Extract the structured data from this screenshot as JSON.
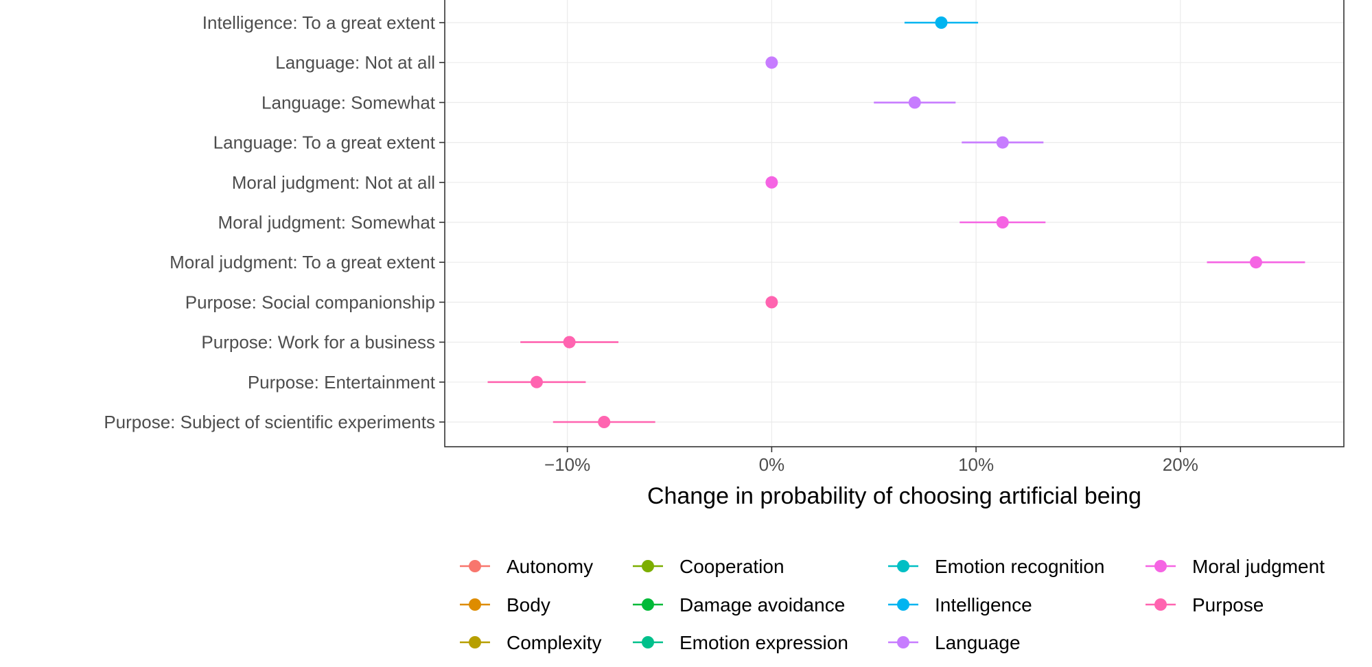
{
  "chart_data": {
    "type": "scatter",
    "subtype": "coefficient-plot-with-error-bars",
    "title": "",
    "xlabel": "Change in probability of choosing artificial being",
    "ylabel": "",
    "xlim": [
      -0.16,
      0.28
    ],
    "x_ticks": [
      {
        "value": -0.1,
        "label": "−10%"
      },
      {
        "value": 0.0,
        "label": "0%"
      },
      {
        "value": 0.1,
        "label": "10%"
      },
      {
        "value": 0.2,
        "label": "20%"
      }
    ],
    "grid": true,
    "legend_position": "bottom",
    "rows": [
      {
        "label": "Intelligence: To a great extent",
        "category": "Intelligence",
        "estimate": 0.083,
        "lower": 0.065,
        "upper": 0.101
      },
      {
        "label": "Language: Not at all",
        "category": "Language",
        "estimate": 0.0,
        "lower": 0.0,
        "upper": 0.0
      },
      {
        "label": "Language: Somewhat",
        "category": "Language",
        "estimate": 0.07,
        "lower": 0.05,
        "upper": 0.09
      },
      {
        "label": "Language: To a great extent",
        "category": "Language",
        "estimate": 0.113,
        "lower": 0.093,
        "upper": 0.133
      },
      {
        "label": "Moral judgment: Not at all",
        "category": "Moral judgment",
        "estimate": 0.0,
        "lower": 0.0,
        "upper": 0.0
      },
      {
        "label": "Moral judgment: Somewhat",
        "category": "Moral judgment",
        "estimate": 0.113,
        "lower": 0.092,
        "upper": 0.134
      },
      {
        "label": "Moral judgment: To a great extent",
        "category": "Moral judgment",
        "estimate": 0.237,
        "lower": 0.213,
        "upper": 0.261
      },
      {
        "label": "Purpose: Social companionship",
        "category": "Purpose",
        "estimate": 0.0,
        "lower": 0.0,
        "upper": 0.0
      },
      {
        "label": "Purpose: Work for a business",
        "category": "Purpose",
        "estimate": -0.099,
        "lower": -0.123,
        "upper": -0.075
      },
      {
        "label": "Purpose: Entertainment",
        "category": "Purpose",
        "estimate": -0.115,
        "lower": -0.139,
        "upper": -0.091
      },
      {
        "label": "Purpose: Subject of scientific experiments",
        "category": "Purpose",
        "estimate": -0.082,
        "lower": -0.107,
        "upper": -0.057
      }
    ],
    "legend": [
      {
        "name": "Autonomy",
        "color": "#F8766D"
      },
      {
        "name": "Body",
        "color": "#DE8C00"
      },
      {
        "name": "Complexity",
        "color": "#B79F00"
      },
      {
        "name": "Cooperation",
        "color": "#7CAE00"
      },
      {
        "name": "Damage avoidance",
        "color": "#00BA38"
      },
      {
        "name": "Emotion expression",
        "color": "#00C08B"
      },
      {
        "name": "Emotion recognition",
        "color": "#00BFC4"
      },
      {
        "name": "Intelligence",
        "color": "#00B4F0"
      },
      {
        "name": "Language",
        "color": "#C77CFF"
      },
      {
        "name": "Moral judgment",
        "color": "#F564E3"
      },
      {
        "name": "Purpose",
        "color": "#FF64B0"
      }
    ]
  }
}
